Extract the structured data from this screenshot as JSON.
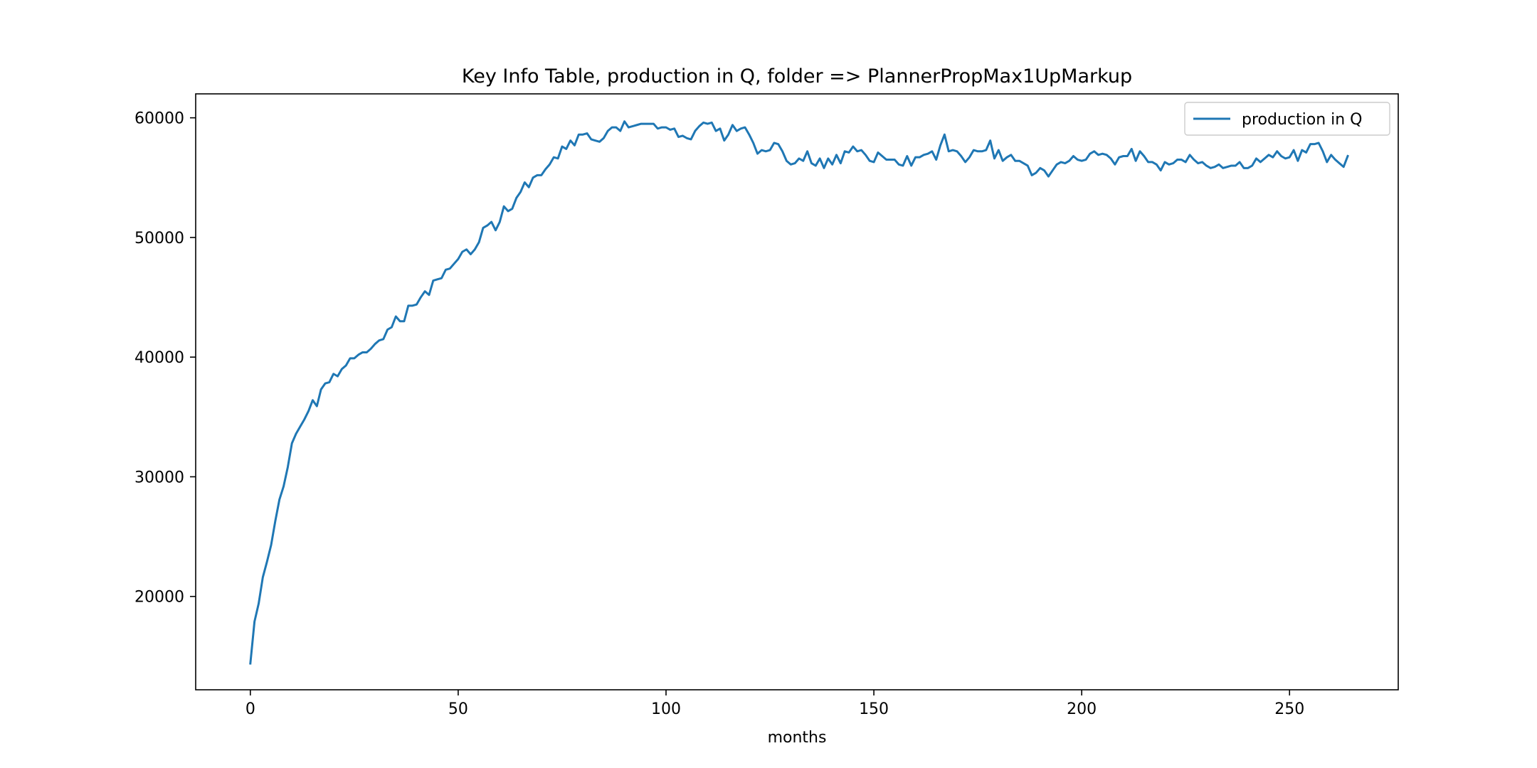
{
  "chart_data": {
    "type": "line",
    "title": "Key Info Table, production in Q, folder => PlannerPropMax1UpMarkup",
    "xlabel": "months",
    "ylabel": "",
    "xlim": [
      -13.15,
      276.15
    ],
    "ylim": [
      12200,
      62000
    ],
    "x_ticks": [
      0,
      50,
      100,
      150,
      200,
      250
    ],
    "x_tick_labels": [
      "0",
      "50",
      "100",
      "150",
      "200",
      "250"
    ],
    "y_ticks": [
      20000,
      30000,
      40000,
      50000,
      60000
    ],
    "y_tick_labels": [
      "20000",
      "30000",
      "40000",
      "50000",
      "60000"
    ],
    "grid": false,
    "legend": {
      "placement": "upper right",
      "entries": [
        "production in Q"
      ]
    },
    "series": [
      {
        "name": "production in Q",
        "color": "#1f77b4",
        "x_start": 0,
        "x_step": 1,
        "values": [
          14400,
          17900,
          19400,
          21600,
          22900,
          24300,
          26300,
          28100,
          29200,
          30800,
          32800,
          33600,
          34200,
          34800,
          35500,
          36400,
          35900,
          37300,
          37800,
          37900,
          38600,
          38400,
          39000,
          39300,
          39900,
          39900,
          40200,
          40400,
          40400,
          40700,
          41100,
          41400,
          41500,
          42300,
          42500,
          43400,
          43000,
          43000,
          44300,
          44300,
          44400,
          45000,
          45500,
          45200,
          46400,
          46500,
          46600,
          47300,
          47400,
          47800,
          48200,
          48800,
          49000,
          48600,
          49000,
          49600,
          50800,
          51000,
          51300,
          50600,
          51300,
          52600,
          52200,
          52400,
          53300,
          53800,
          54600,
          54200,
          55000,
          55200,
          55200,
          55700,
          56100,
          56700,
          56600,
          57600,
          57400,
          58100,
          57700,
          58600,
          58600,
          58700,
          58200,
          58100,
          58000,
          58300,
          58900,
          59200,
          59200,
          58900,
          59700,
          59200,
          59300,
          59400,
          59500,
          59500,
          59500,
          59500,
          59100,
          59200,
          59200,
          59000,
          59100,
          58400,
          58500,
          58300,
          58200,
          58900,
          59300,
          59600,
          59500,
          59600,
          58900,
          59100,
          58100,
          58600,
          59400,
          58900,
          59100,
          59200,
          58600,
          57900,
          57000,
          57300,
          57200,
          57300,
          57900,
          57800,
          57200,
          56400,
          56100,
          56200,
          56600,
          56400,
          57200,
          56200,
          56000,
          56600,
          55800,
          56600,
          56100,
          56900,
          56200,
          57200,
          57100,
          57600,
          57200,
          57300,
          56900,
          56400,
          56300,
          57100,
          56800,
          56500,
          56500,
          56500,
          56100,
          56000,
          56800,
          56000,
          56700,
          56700,
          56900,
          57000,
          57200,
          56500,
          57700,
          58600,
          57200,
          57300,
          57200,
          56800,
          56300,
          56700,
          57300,
          57200,
          57200,
          57300,
          58100,
          56600,
          57300,
          56400,
          56700,
          56900,
          56400,
          56400,
          56200,
          56000,
          55200,
          55400,
          55800,
          55600,
          55100,
          55600,
          56100,
          56300,
          56200,
          56400,
          56800,
          56500,
          56400,
          56500,
          57000,
          57200,
          56900,
          57000,
          56900,
          56600,
          56100,
          56700,
          56800,
          56800,
          57400,
          56400,
          57200,
          56800,
          56300,
          56300,
          56100,
          55600,
          56300,
          56100,
          56200,
          56500,
          56500,
          56300,
          56900,
          56500,
          56200,
          56300,
          56000,
          55800,
          55900,
          56100,
          55800,
          55900,
          56000,
          56000,
          56300,
          55800,
          55800,
          56000,
          56600,
          56300,
          56600,
          56900,
          56700,
          57200,
          56800,
          56600,
          56700,
          57300,
          56400,
          57300,
          57100,
          57800,
          57800,
          57900,
          57200,
          56300,
          56900,
          56500,
          56200,
          55900,
          56800
        ]
      }
    ]
  }
}
